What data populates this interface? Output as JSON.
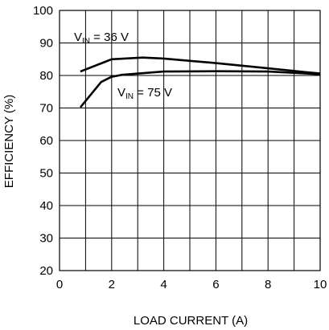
{
  "chart_data": {
    "type": "line",
    "title": "",
    "xlabel": "LOAD CURRENT (A)",
    "ylabel": "EFFICIENCY (%)",
    "xlim": [
      0,
      10
    ],
    "ylim": [
      20,
      100
    ],
    "x_ticks": [
      0,
      2,
      4,
      6,
      8,
      10
    ],
    "y_ticks": [
      20,
      30,
      40,
      50,
      60,
      70,
      80,
      90,
      100
    ],
    "grid": true,
    "series": [
      {
        "annotation": {
          "prefix": "V",
          "sub": "IN",
          "suffix": " = 36 V"
        },
        "points": [
          [
            0.8,
            81.2
          ],
          [
            2.0,
            85.0
          ],
          [
            3.2,
            85.5
          ],
          [
            4.0,
            85.2
          ],
          [
            6.0,
            83.8
          ],
          [
            8.0,
            82.2
          ],
          [
            10.0,
            80.6
          ]
        ]
      },
      {
        "annotation": {
          "prefix": "V",
          "sub": "IN",
          "suffix": " = 75 V"
        },
        "points": [
          [
            0.8,
            70.2
          ],
          [
            1.6,
            78.0
          ],
          [
            2.0,
            79.6
          ],
          [
            2.4,
            80.2
          ],
          [
            4.0,
            81.2
          ],
          [
            6.0,
            81.3
          ],
          [
            8.0,
            81.2
          ],
          [
            10.0,
            80.4
          ]
        ]
      }
    ]
  }
}
